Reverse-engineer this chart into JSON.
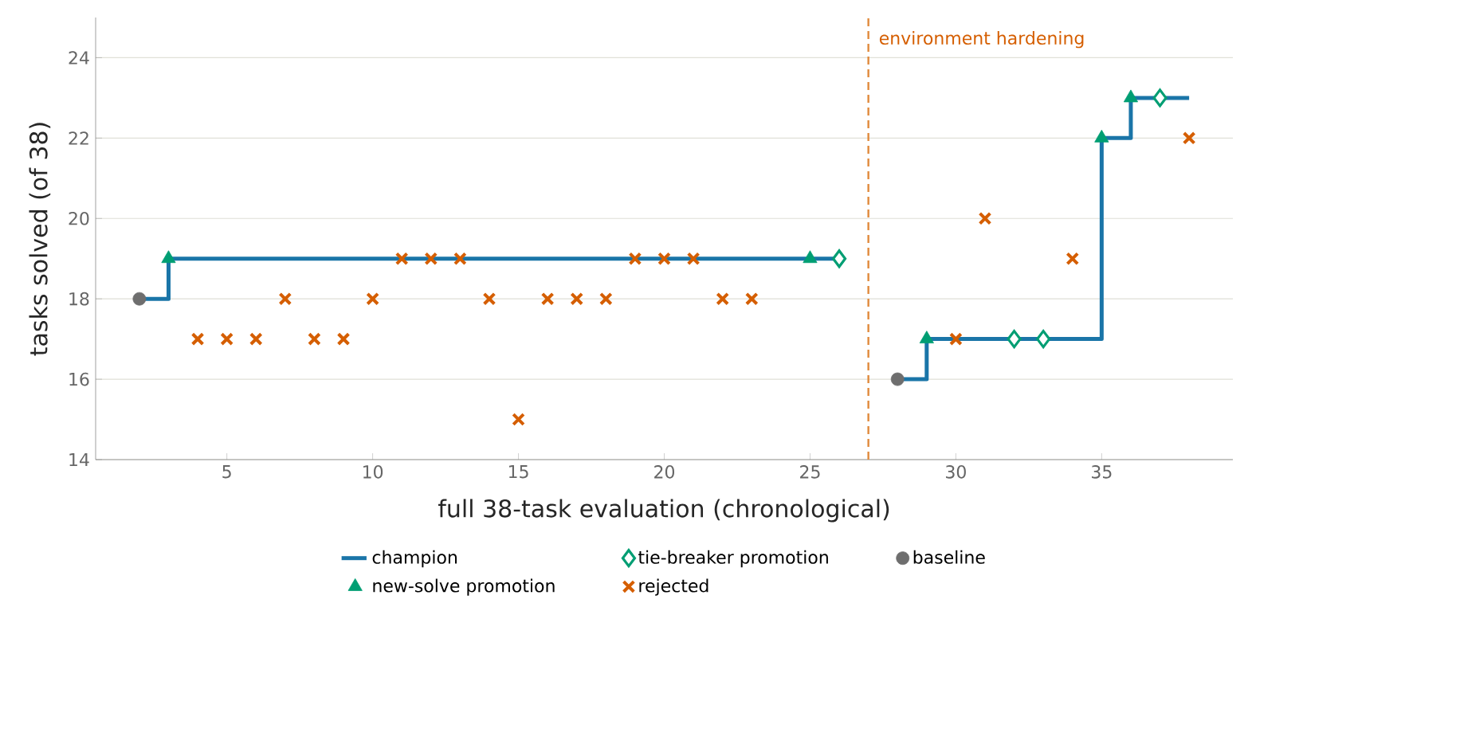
{
  "chart_data": {
    "type": "step",
    "xlabel": "full 38-task evaluation (chronological)",
    "ylabel": "tasks solved (of 38)",
    "xlim": [
      0.5,
      39.5
    ],
    "ylim": [
      14,
      25
    ],
    "xticks": [
      5,
      10,
      15,
      20,
      25,
      30,
      35
    ],
    "yticks": [
      14,
      16,
      18,
      20,
      22,
      24
    ],
    "grid": "y",
    "legend": "bottom",
    "ref_lines": [
      {
        "axis": "x",
        "value": 27,
        "label": "environment hardening",
        "color": "#e08a3c",
        "line_style": "dashed"
      }
    ],
    "series": [
      {
        "name": "champion",
        "type": "step",
        "color": "#1a75a8",
        "marker": "none",
        "x": [
          2,
          3,
          25,
          26,
          27,
          28,
          29,
          32,
          33,
          35,
          36,
          37,
          38
        ],
        "values": [
          18,
          19,
          19,
          19,
          null,
          16,
          17,
          17,
          17,
          22,
          23,
          23,
          23
        ]
      },
      {
        "name": "tie-breaker promotion",
        "type": "scatter",
        "color": "#009e73",
        "marker": "diamond",
        "x": [
          26,
          32,
          33,
          37
        ],
        "values": [
          19,
          17,
          17,
          23
        ]
      },
      {
        "name": "baseline",
        "type": "scatter",
        "color": "#6e6e6e",
        "marker": "circle",
        "x": [
          2,
          28
        ],
        "values": [
          18,
          16
        ]
      },
      {
        "name": "new-solve promotion",
        "type": "scatter",
        "color": "#009e73",
        "marker": "triangle",
        "x": [
          3,
          25,
          29,
          35,
          36
        ],
        "values": [
          19,
          19,
          17,
          22,
          23
        ]
      },
      {
        "name": "rejected",
        "type": "scatter",
        "color": "#d55e00",
        "marker": "cross",
        "x": [
          4,
          5,
          6,
          7,
          8,
          9,
          10,
          11,
          12,
          13,
          14,
          15,
          16,
          17,
          18,
          19,
          20,
          21,
          22,
          23,
          30,
          31,
          34,
          38
        ],
        "values": [
          17,
          17,
          17,
          18,
          17,
          17,
          18,
          19,
          19,
          19,
          18,
          15,
          18,
          18,
          18,
          19,
          19,
          19,
          18,
          18,
          17,
          20,
          19,
          22
        ]
      }
    ]
  }
}
